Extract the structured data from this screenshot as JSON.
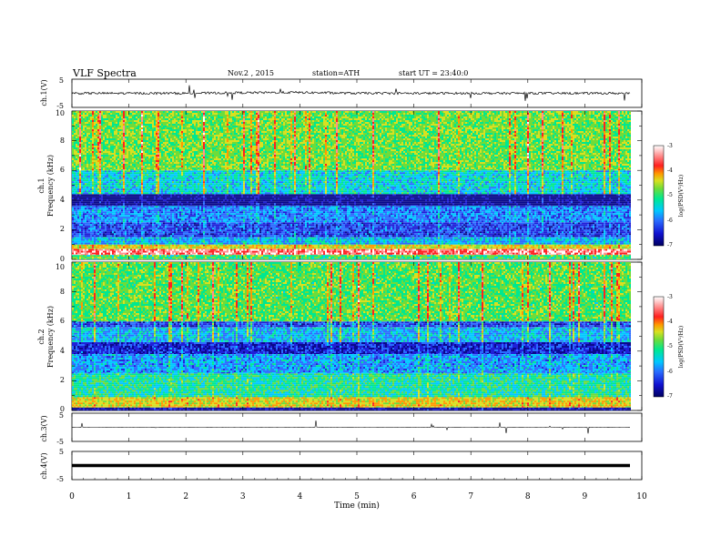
{
  "header": {
    "title": "VLF  Spectra",
    "date": "Nov.2  , 2015",
    "station": "station=ATH",
    "start": "start  UT  =   23:40:0"
  },
  "colors": {
    "spectrogram_scale": [
      "#0a0a8c",
      "#2020d8",
      "#2a6cff",
      "#00c8ff",
      "#00e890",
      "#6edc3a",
      "#d8e020",
      "#ff9800",
      "#ff2020",
      "#ff9090",
      "#ffffff"
    ]
  },
  "chart_data": [
    {
      "type": "line",
      "panel": "ch1-waveform",
      "ylabel": "ch.1(V)",
      "yticks": [
        "5",
        "-5"
      ],
      "ylim": [
        -5,
        5
      ],
      "x": [
        0,
        1,
        2,
        3,
        4,
        5,
        6,
        7,
        8,
        9,
        9.8
      ],
      "y": [
        0,
        0,
        0,
        0.2,
        0.3,
        0,
        0,
        0,
        0,
        0,
        0
      ]
    },
    {
      "type": "heatmap",
      "panel": "ch1-spectrogram",
      "ylabel_line1": "ch.1",
      "ylabel_line2": "Frequency  (kHz)",
      "yticks": [
        "0",
        "2",
        "4",
        "6",
        "8",
        "10"
      ],
      "ylim": [
        0,
        10
      ],
      "xlim": [
        0,
        9.8
      ],
      "colorbar": {
        "label": "log(PSD(V²/Hz)",
        "ticks": [
          "-3",
          "-4",
          "-5",
          "-6",
          "-7"
        ],
        "range": [
          -7,
          -3
        ]
      },
      "bands": [
        {
          "f0": 0,
          "f1": 0.3,
          "value": -5.2
        },
        {
          "f0": 0.3,
          "f1": 0.7,
          "value": -3.6
        },
        {
          "f0": 0.7,
          "f1": 1.0,
          "value": -4.6
        },
        {
          "f0": 1.0,
          "f1": 1.5,
          "value": -5.8
        },
        {
          "f0": 1.5,
          "f1": 2.5,
          "value": -6.3
        },
        {
          "f0": 2.5,
          "f1": 3.6,
          "value": -6.0
        },
        {
          "f0": 3.6,
          "f1": 4.4,
          "value": -6.9
        },
        {
          "f0": 4.4,
          "f1": 6.0,
          "value": -5.6
        },
        {
          "f0": 6.0,
          "f1": 10,
          "value": -5.0
        }
      ]
    },
    {
      "type": "heatmap",
      "panel": "ch2-spectrogram",
      "ylabel_line1": "ch.2",
      "ylabel_line2": "Frequency  (kHz)",
      "yticks": [
        "0",
        "2",
        "4",
        "6",
        "8",
        "10"
      ],
      "ylim": [
        0,
        10
      ],
      "xlim": [
        0,
        9.8
      ],
      "colorbar": {
        "label": "log(PSD(V²/Hz)",
        "ticks": [
          "-3",
          "-4",
          "-5",
          "-6",
          "-7"
        ],
        "range": [
          -7,
          -3
        ]
      },
      "bands": [
        {
          "f0": 0,
          "f1": 0.2,
          "value": -6.8
        },
        {
          "f0": 0.2,
          "f1": 0.9,
          "value": -4.6
        },
        {
          "f0": 0.9,
          "f1": 2.5,
          "value": -5.4
        },
        {
          "f0": 2.5,
          "f1": 3.8,
          "value": -5.9
        },
        {
          "f0": 3.8,
          "f1": 4.6,
          "value": -6.5
        },
        {
          "f0": 4.6,
          "f1": 5.6,
          "value": -5.8
        },
        {
          "f0": 5.6,
          "f1": 6.0,
          "value": -6.3
        },
        {
          "f0": 6.0,
          "f1": 10,
          "value": -5.1
        }
      ]
    },
    {
      "type": "line",
      "panel": "ch3-waveform",
      "ylabel": "ch.3(V)",
      "yticks": [
        "5",
        "-5"
      ],
      "ylim": [
        -5,
        5
      ],
      "x": [
        0,
        9.8
      ],
      "y": [
        0,
        0
      ]
    },
    {
      "type": "line",
      "panel": "ch4-waveform",
      "ylabel": "ch.4(V)",
      "yticks": [
        "5",
        "-5"
      ],
      "ylim": [
        -5,
        5
      ],
      "x": [
        0,
        9.8
      ],
      "y": [
        0,
        0
      ]
    }
  ],
  "xaxis": {
    "label": "Time  (min)",
    "ticks": [
      "0",
      "1",
      "2",
      "3",
      "4",
      "5",
      "6",
      "7",
      "8",
      "9",
      "10"
    ],
    "xlim": [
      0,
      10
    ]
  }
}
